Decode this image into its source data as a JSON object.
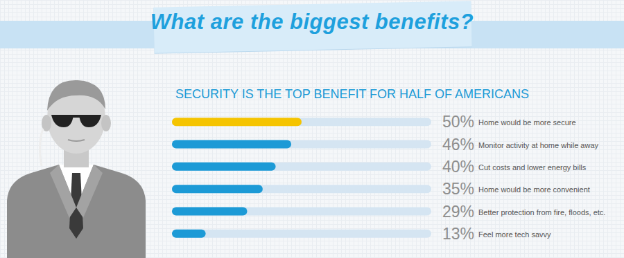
{
  "chart_data": {
    "type": "bar",
    "orientation": "horizontal",
    "title": "What are the biggest benefits?",
    "subtitle": "SECURITY IS THE TOP BENEFIT FOR HALF OF AMERICANS",
    "categories": [
      "Home would be more secure",
      "Monitor activity at home while away",
      "Cut costs and lower energy bills",
      "Home would be more convenient",
      "Better protection from fire, floods, etc.",
      "Feel more tech savvy"
    ],
    "values": [
      50,
      46,
      40,
      35,
      29,
      13
    ],
    "value_labels": [
      "50%",
      "46%",
      "40%",
      "35%",
      "29%",
      "13%"
    ],
    "colors": [
      "#f5c400",
      "#1c9ad6",
      "#1c9ad6",
      "#1c9ad6",
      "#1c9ad6",
      "#1c9ad6"
    ],
    "xlim": [
      0,
      100
    ],
    "data_labels": true,
    "tick_labels": "y",
    "grid": false
  }
}
